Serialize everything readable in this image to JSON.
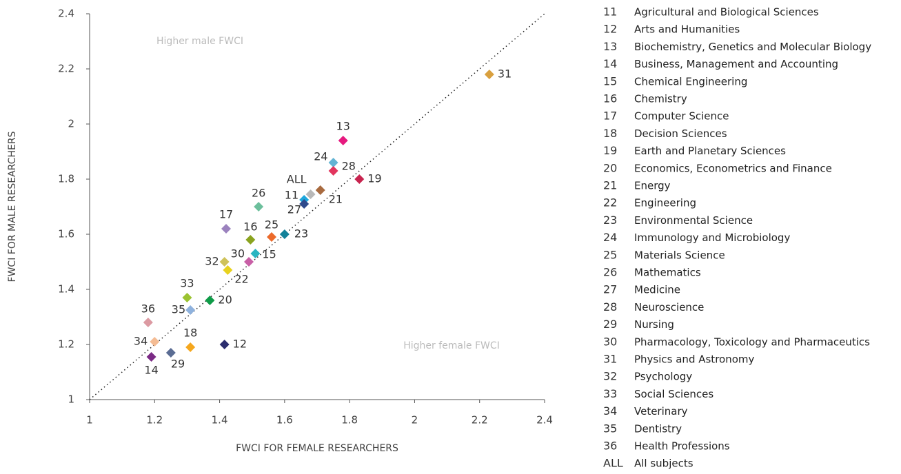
{
  "chart_data": {
    "type": "scatter",
    "xlabel": "FWCI FOR FEMALE RESEARCHERS",
    "ylabel": "FWCI FOR MALE RESEARCHERS",
    "annotations": [
      "Higher male FWCI",
      "Higher female FWCI"
    ],
    "xlim": [
      1,
      2.4
    ],
    "xticks": [
      1,
      1.2,
      1.4,
      1.6,
      1.8,
      2,
      2.2,
      2.4
    ],
    "ylim": [
      1,
      2.4
    ],
    "yticks": [
      1,
      1.2,
      1.4,
      1.6,
      1.8,
      2,
      2.2,
      2.4
    ],
    "points": [
      {
        "label": "11",
        "name": "Agricultural and Biological Sciences",
        "color": "#1ea7dd",
        "x": 1.66,
        "y": 1.725
      },
      {
        "label": "12",
        "name": "Arts and Humanities",
        "color": "#2b2d6e",
        "x": 1.415,
        "y": 1.2
      },
      {
        "label": "13",
        "name": "Biochemistry, Genetics and Molecular Biology",
        "color": "#e6197f",
        "x": 1.78,
        "y": 1.94
      },
      {
        "label": "14",
        "name": "Business, Management and Accounting",
        "color": "#7b2a85",
        "x": 1.19,
        "y": 1.155
      },
      {
        "label": "15",
        "name": "Chemical Engineering",
        "color": "#2ab5c1",
        "x": 1.51,
        "y": 1.53
      },
      {
        "label": "16",
        "name": "Chemistry",
        "color": "#8aa31f",
        "x": 1.495,
        "y": 1.58
      },
      {
        "label": "17",
        "name": "Computer Science",
        "color": "#9b82be",
        "x": 1.42,
        "y": 1.62
      },
      {
        "label": "18",
        "name": "Decision Sciences",
        "color": "#f5a71e",
        "x": 1.31,
        "y": 1.19
      },
      {
        "label": "19",
        "name": "Earth and Planetary Sciences",
        "color": "#c8244f",
        "x": 1.83,
        "y": 1.8
      },
      {
        "label": "20",
        "name": "Economics, Econometrics and Finance",
        "color": "#0f9b48",
        "x": 1.37,
        "y": 1.36
      },
      {
        "label": "21",
        "name": "Energy",
        "color": "#a86a3f",
        "x": 1.71,
        "y": 1.76
      },
      {
        "label": "22",
        "name": "Engineering",
        "color": "#e8d21e",
        "x": 1.425,
        "y": 1.47
      },
      {
        "label": "23",
        "name": "Environmental Science",
        "color": "#138199",
        "x": 1.6,
        "y": 1.6
      },
      {
        "label": "24",
        "name": "Immunology and Microbiology",
        "color": "#63b4d4",
        "x": 1.75,
        "y": 1.86
      },
      {
        "label": "25",
        "name": "Materials Science",
        "color": "#ec6a2b",
        "x": 1.56,
        "y": 1.59
      },
      {
        "label": "26",
        "name": "Mathematics",
        "color": "#6cbf9c",
        "x": 1.52,
        "y": 1.7
      },
      {
        "label": "27",
        "name": "Medicine",
        "color": "#2e4a8c",
        "x": 1.66,
        "y": 1.71
      },
      {
        "label": "28",
        "name": "Neuroscience",
        "color": "#e2355e",
        "x": 1.75,
        "y": 1.83
      },
      {
        "label": "29",
        "name": "Nursing",
        "color": "#5a6c93",
        "x": 1.25,
        "y": 1.17
      },
      {
        "label": "30",
        "name": "Pharmacology, Toxicology and Pharmaceutics",
        "color": "#c85fa6",
        "x": 1.49,
        "y": 1.5
      },
      {
        "label": "31",
        "name": "Physics and Astronomy",
        "color": "#d9a03f",
        "x": 2.23,
        "y": 2.18
      },
      {
        "label": "32",
        "name": "Psychology",
        "color": "#cfc25a",
        "x": 1.415,
        "y": 1.5
      },
      {
        "label": "33",
        "name": "Social Sciences",
        "color": "#9bc331",
        "x": 1.3,
        "y": 1.37
      },
      {
        "label": "34",
        "name": "Veterinary",
        "color": "#f4bc94",
        "x": 1.2,
        "y": 1.21
      },
      {
        "label": "35",
        "name": "Dentistry",
        "color": "#8fb2dd",
        "x": 1.31,
        "y": 1.325
      },
      {
        "label": "36",
        "name": "Health Professions",
        "color": "#dc9aa2",
        "x": 1.18,
        "y": 1.28
      },
      {
        "label": "ALL",
        "name": "All subjects",
        "color": "#b8b8b8",
        "x": 1.68,
        "y": 1.745
      }
    ]
  }
}
